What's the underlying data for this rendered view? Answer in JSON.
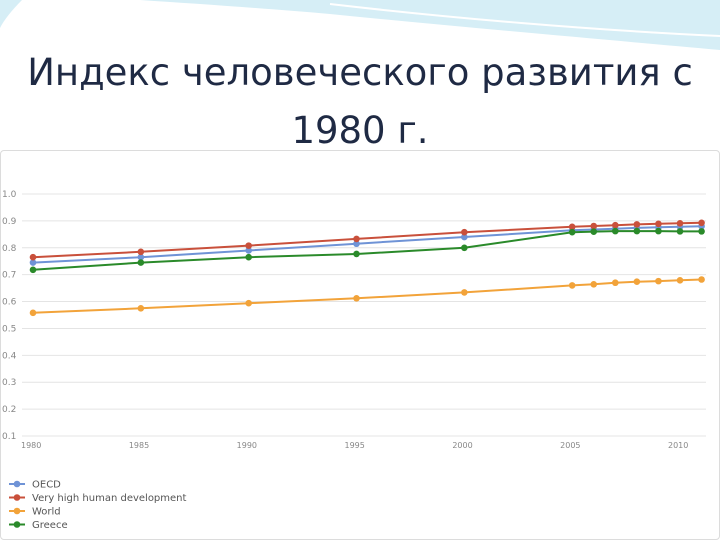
{
  "slide": {
    "title": "Индекс человеческого развития с\n1980 г."
  },
  "colors": {
    "OECD": "#6f93d6",
    "Very high human development": "#c9503b",
    "World": "#f2a33a",
    "Greece": "#2a8a2a",
    "grid": "#e4e4e4",
    "tick_text": "#888888"
  },
  "chart_data": {
    "type": "line",
    "title": "",
    "xlabel": "",
    "ylabel": "",
    "ylim": [
      0.1,
      1.0
    ],
    "xlim": [
      1980,
      2010
    ],
    "y_ticks": [
      "1.0",
      "0.9",
      "0.8",
      "0.7",
      "0.6",
      "0.5",
      "0.4",
      "0.3",
      "0.2",
      "0.1"
    ],
    "y_tick_values": [
      1.0,
      0.9,
      0.8,
      0.7,
      0.6,
      0.5,
      0.4,
      0.3,
      0.2,
      0.1
    ],
    "x_ticks": [
      "1980",
      "1985",
      "1990",
      "1995",
      "2000",
      "2005",
      "2010"
    ],
    "x_tick_values": [
      1980,
      1985,
      1990,
      1995,
      2000,
      2005,
      2010
    ],
    "x": [
      1980,
      1985,
      1990,
      1995,
      2000,
      2005,
      2006,
      2007,
      2008,
      2009,
      2010,
      2011
    ],
    "grid": true,
    "legend_position": "bottom-left",
    "series": [
      {
        "name": "OECD",
        "values": [
          0.745,
          0.765,
          0.79,
          0.815,
          0.84,
          0.865,
          0.868,
          0.871,
          0.874,
          0.876,
          0.878,
          0.88
        ]
      },
      {
        "name": "Very high human development",
        "values": [
          0.765,
          0.785,
          0.808,
          0.833,
          0.858,
          0.878,
          0.881,
          0.884,
          0.887,
          0.889,
          0.891,
          0.893
        ]
      },
      {
        "name": "World",
        "values": [
          0.558,
          0.575,
          0.594,
          0.612,
          0.634,
          0.66,
          0.664,
          0.67,
          0.674,
          0.676,
          0.679,
          0.682
        ]
      },
      {
        "name": "Greece",
        "values": [
          0.718,
          0.745,
          0.765,
          0.777,
          0.8,
          0.858,
          0.86,
          0.862,
          0.862,
          0.862,
          0.861,
          0.861
        ]
      }
    ]
  }
}
